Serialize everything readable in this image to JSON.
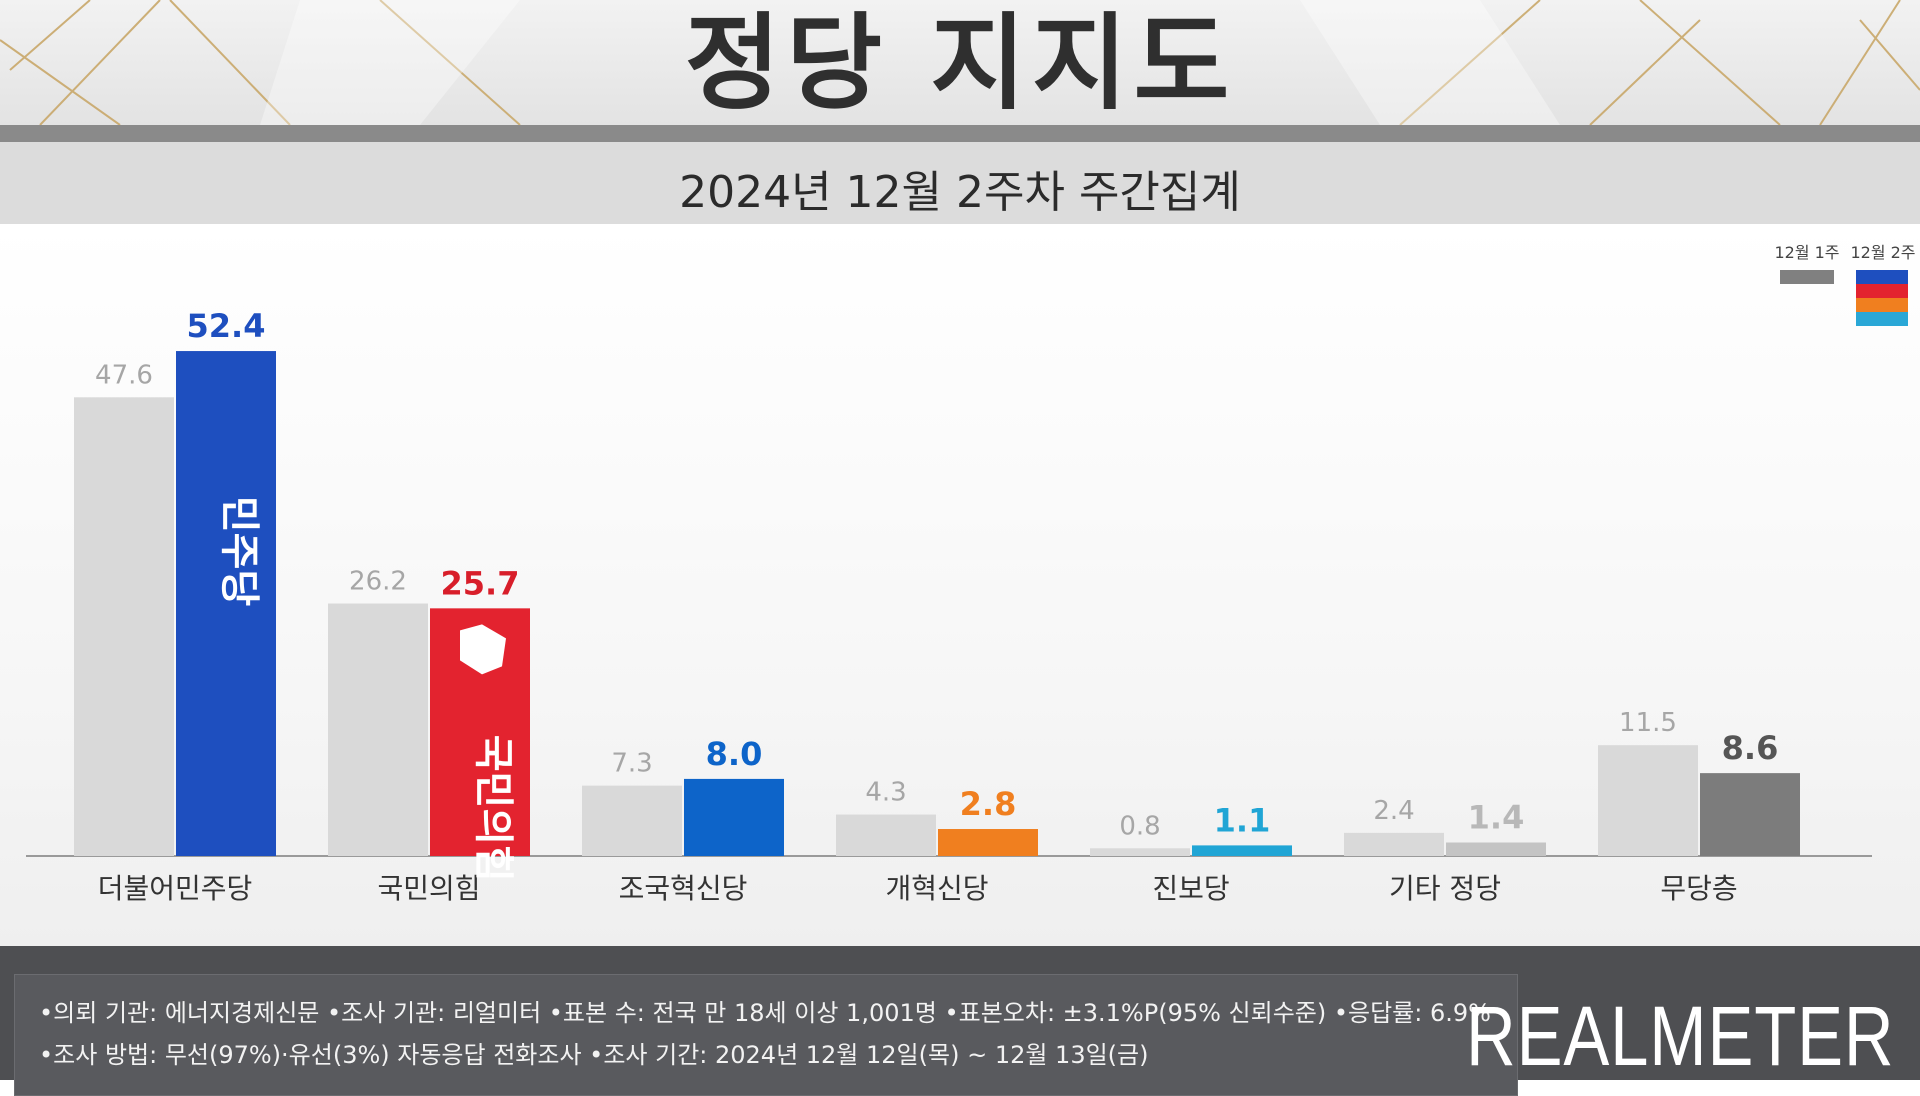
{
  "header": {
    "title": "정당 지지도",
    "subtitle": "2024년 12월 2주차 주간집계"
  },
  "legend": {
    "prev_label": "12월 1주",
    "curr_label": "12월 2주"
  },
  "colors": {
    "prev_bar": "#d9d9d9",
    "prev_text": "#a6a6a6",
    "axis": "#9a9a9a",
    "legend_prev": "#808080",
    "legend_curr": [
      "#1e4fbf",
      "#e3232f",
      "#f07f1f",
      "#2aa7d6"
    ]
  },
  "chart_data": {
    "type": "bar",
    "title": "정당 지지도",
    "subtitle": "2024년 12월 2주차 주간집계",
    "categories": [
      "더불어민주당",
      "국민의힘",
      "조국혁신당",
      "개혁신당",
      "진보당",
      "기타 정당",
      "무당층"
    ],
    "series": [
      {
        "name": "12월 1주",
        "values": [
          47.6,
          26.2,
          7.3,
          4.3,
          0.8,
          2.4,
          11.5
        ],
        "color": "#d9d9d9"
      },
      {
        "name": "12월 2주",
        "values": [
          52.4,
          25.7,
          8.0,
          2.8,
          1.1,
          1.4,
          8.6
        ],
        "colors": [
          "#1e4fbf",
          "#e3232f",
          "#0d64c9",
          "#f07f1f",
          "#20a5d5",
          "#c4c4c4",
          "#7c7c7c"
        ],
        "label_colors": [
          "#1e4fbf",
          "#d81e2a",
          "#0d64c9",
          "#f07f1f",
          "#20a5d5",
          "#b8b8b8",
          "#555555"
        ]
      }
    ],
    "bar_marks": [
      "민주당",
      "국민의힘"
    ],
    "ylim": [
      0,
      55
    ],
    "grid": false,
    "legend_position": "top-right"
  },
  "footer": {
    "line1": "•의뢰 기관: 에너지경제신문   •조사 기관: 리얼미터 •표본 수: 전국 만 18세 이상 1,001명 •표본오차: ±3.1%P(95% 신뢰수준) •응답률: 6.9%",
    "line2": "•조사 방법: 무선(97%)·유선(3%) 자동응답 전화조사 •조사 기간: 2024년 12월 12일(목) ~ 12월 13일(금)",
    "brand": "REALMETER"
  }
}
